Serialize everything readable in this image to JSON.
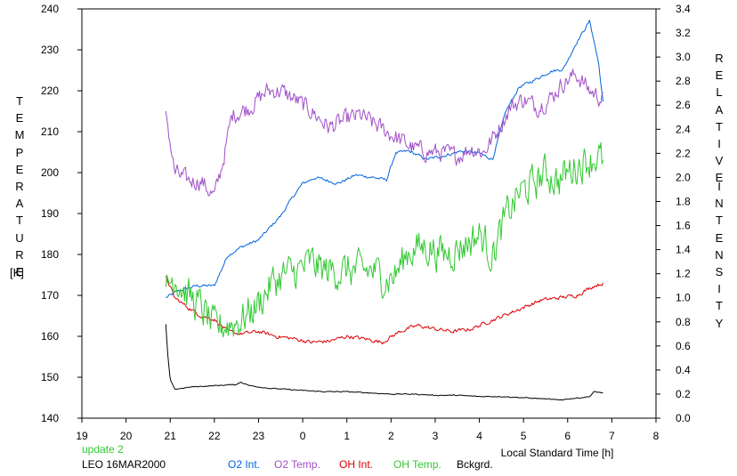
{
  "chart_data": {
    "type": "line",
    "xlabel": "Local Standard Time [h]",
    "x_ticks": [
      "19",
      "20",
      "21",
      "22",
      "23",
      "0",
      "1",
      "2",
      "3",
      "4",
      "5",
      "6",
      "7",
      "8"
    ],
    "xlim": [
      19,
      32
    ],
    "left_axis": {
      "label_letters": [
        "T",
        "E",
        "M",
        "P",
        "E",
        "R",
        "A",
        "T",
        "U",
        "R",
        "E"
      ],
      "unit": "[K]",
      "ylim": [
        140,
        240
      ],
      "ticks": [
        "140",
        "150",
        "160",
        "170",
        "180",
        "190",
        "200",
        "210",
        "220",
        "230",
        "240"
      ]
    },
    "right_axis": {
      "label_word1": [
        "R",
        "E",
        "L",
        "A",
        "T",
        "I",
        "V",
        "E"
      ],
      "label_word2": [
        "I",
        "N",
        "T",
        "E",
        "N",
        "S",
        "I",
        "T",
        "Y"
      ],
      "ylim": [
        0.0,
        3.4
      ],
      "ticks": [
        "0.0",
        "0.2",
        "0.4",
        "0.6",
        "0.8",
        "1.0",
        "1.2",
        "1.4",
        "1.6",
        "1.8",
        "2.0",
        "2.2",
        "2.4",
        "2.6",
        "2.8",
        "3.0",
        "3.2",
        "3.4"
      ]
    },
    "series": [
      {
        "key": "o2int",
        "name": "O2 Int.",
        "axis": "right",
        "color": "#0064dc",
        "noise": 0.02,
        "points": [
          [
            20.9,
            1.0
          ],
          [
            21.2,
            1.06
          ],
          [
            21.6,
            1.1
          ],
          [
            22.0,
            1.1
          ],
          [
            22.3,
            1.35
          ],
          [
            22.6,
            1.42
          ],
          [
            23.0,
            1.48
          ],
          [
            23.5,
            1.68
          ],
          [
            23.8,
            1.85
          ],
          [
            24.0,
            1.95
          ],
          [
            24.3,
            2.0
          ],
          [
            24.5,
            1.98
          ],
          [
            24.8,
            1.95
          ],
          [
            25.2,
            2.02
          ],
          [
            25.6,
            2.0
          ],
          [
            25.9,
            1.98
          ],
          [
            26.1,
            2.2
          ],
          [
            26.4,
            2.22
          ],
          [
            26.8,
            2.15
          ],
          [
            27.2,
            2.18
          ],
          [
            27.6,
            2.22
          ],
          [
            28.0,
            2.2
          ],
          [
            28.3,
            2.15
          ],
          [
            28.6,
            2.55
          ],
          [
            28.9,
            2.75
          ],
          [
            29.2,
            2.8
          ],
          [
            29.6,
            2.88
          ],
          [
            29.9,
            2.9
          ],
          [
            30.2,
            3.12
          ],
          [
            30.5,
            3.3
          ],
          [
            30.7,
            2.95
          ],
          [
            30.8,
            2.62
          ]
        ]
      },
      {
        "key": "o2temp",
        "name": "O2 Temp.",
        "axis": "left",
        "color": "#a050c8",
        "noise": 3.5,
        "points": [
          [
            20.9,
            215
          ],
          [
            21.1,
            200
          ],
          [
            21.4,
            198
          ],
          [
            21.7,
            198
          ],
          [
            22.0,
            194
          ],
          [
            22.2,
            203
          ],
          [
            22.4,
            214
          ],
          [
            22.8,
            216
          ],
          [
            23.2,
            220
          ],
          [
            23.5,
            220
          ],
          [
            23.8,
            218
          ],
          [
            24.2,
            215
          ],
          [
            24.6,
            211
          ],
          [
            25.0,
            213
          ],
          [
            25.3,
            214
          ],
          [
            25.6,
            212
          ],
          [
            25.9,
            210
          ],
          [
            26.2,
            208
          ],
          [
            26.5,
            206
          ],
          [
            26.8,
            205
          ],
          [
            27.1,
            205
          ],
          [
            27.5,
            204
          ],
          [
            27.8,
            206
          ],
          [
            28.1,
            205
          ],
          [
            28.4,
            210
          ],
          [
            28.7,
            216
          ],
          [
            29.0,
            218
          ],
          [
            29.3,
            216
          ],
          [
            29.6,
            218
          ],
          [
            29.9,
            222
          ],
          [
            30.2,
            224
          ],
          [
            30.5,
            220
          ],
          [
            30.8,
            218
          ]
        ]
      },
      {
        "key": "ohint",
        "name": "OH Int.",
        "axis": "right",
        "color": "#dc0000",
        "noise": 0.025,
        "points": [
          [
            20.9,
            1.18
          ],
          [
            21.1,
            1.0
          ],
          [
            21.4,
            0.92
          ],
          [
            21.7,
            0.85
          ],
          [
            22.0,
            0.82
          ],
          [
            22.3,
            0.72
          ],
          [
            22.6,
            0.7
          ],
          [
            23.0,
            0.72
          ],
          [
            23.4,
            0.68
          ],
          [
            23.8,
            0.66
          ],
          [
            24.2,
            0.63
          ],
          [
            24.6,
            0.64
          ],
          [
            25.0,
            0.68
          ],
          [
            25.4,
            0.66
          ],
          [
            25.8,
            0.63
          ],
          [
            26.2,
            0.72
          ],
          [
            26.6,
            0.77
          ],
          [
            27.0,
            0.74
          ],
          [
            27.4,
            0.72
          ],
          [
            27.8,
            0.74
          ],
          [
            28.2,
            0.8
          ],
          [
            28.6,
            0.86
          ],
          [
            29.0,
            0.92
          ],
          [
            29.4,
            0.98
          ],
          [
            29.8,
            1.0
          ],
          [
            30.2,
            1.02
          ],
          [
            30.6,
            1.1
          ],
          [
            30.8,
            1.12
          ]
        ]
      },
      {
        "key": "ohtemp",
        "name": "OH Temp.",
        "axis": "left",
        "color": "#32c832",
        "noise": 7,
        "points": [
          [
            20.9,
            172
          ],
          [
            21.1,
            175
          ],
          [
            21.4,
            170
          ],
          [
            21.7,
            167
          ],
          [
            22.0,
            162
          ],
          [
            22.3,
            163
          ],
          [
            22.6,
            164
          ],
          [
            23.0,
            168
          ],
          [
            23.3,
            173
          ],
          [
            23.6,
            175
          ],
          [
            23.9,
            176
          ],
          [
            24.2,
            178
          ],
          [
            24.5,
            176
          ],
          [
            24.8,
            176
          ],
          [
            25.2,
            176
          ],
          [
            25.6,
            176
          ],
          [
            25.9,
            174
          ],
          [
            26.1,
            175
          ],
          [
            26.4,
            181
          ],
          [
            26.8,
            182
          ],
          [
            27.2,
            180
          ],
          [
            27.6,
            182
          ],
          [
            28.0,
            185
          ],
          [
            28.3,
            180
          ],
          [
            28.6,
            189
          ],
          [
            28.9,
            195
          ],
          [
            29.2,
            197
          ],
          [
            29.5,
            200
          ],
          [
            29.8,
            198
          ],
          [
            30.1,
            201
          ],
          [
            30.4,
            203
          ],
          [
            30.7,
            204
          ],
          [
            30.8,
            202
          ]
        ]
      },
      {
        "key": "bckgrd",
        "name": "Bckgrd.",
        "axis": "right",
        "color": "#000000",
        "noise": 0.006,
        "points": [
          [
            20.9,
            0.78
          ],
          [
            20.95,
            0.5
          ],
          [
            21.0,
            0.32
          ],
          [
            21.1,
            0.24
          ],
          [
            21.5,
            0.26
          ],
          [
            22.0,
            0.27
          ],
          [
            22.5,
            0.28
          ],
          [
            22.6,
            0.3
          ],
          [
            22.8,
            0.27
          ],
          [
            23.2,
            0.25
          ],
          [
            23.6,
            0.24
          ],
          [
            24.0,
            0.23
          ],
          [
            24.5,
            0.22
          ],
          [
            25.0,
            0.22
          ],
          [
            25.5,
            0.21
          ],
          [
            26.0,
            0.2
          ],
          [
            26.5,
            0.2
          ],
          [
            27.0,
            0.19
          ],
          [
            27.5,
            0.19
          ],
          [
            28.0,
            0.18
          ],
          [
            28.5,
            0.18
          ],
          [
            29.0,
            0.17
          ],
          [
            29.5,
            0.16
          ],
          [
            29.8,
            0.15
          ],
          [
            30.0,
            0.16
          ],
          [
            30.3,
            0.17
          ],
          [
            30.5,
            0.18
          ],
          [
            30.6,
            0.22
          ],
          [
            30.8,
            0.21
          ]
        ]
      }
    ]
  },
  "footer": {
    "update": "update 2",
    "station": "LEO 16MAR2000",
    "legend": [
      {
        "key": "o2int",
        "label": "O2 Int.",
        "color": "#0064dc"
      },
      {
        "key": "o2temp",
        "label": "O2 Temp.",
        "color": "#a050c8"
      },
      {
        "key": "ohint",
        "label": "OH Int.",
        "color": "#dc0000"
      },
      {
        "key": "ohtemp",
        "label": "OH Temp.",
        "color": "#32c832"
      },
      {
        "key": "bckgrd",
        "label": "Bckgrd.",
        "color": "#000000"
      }
    ]
  }
}
